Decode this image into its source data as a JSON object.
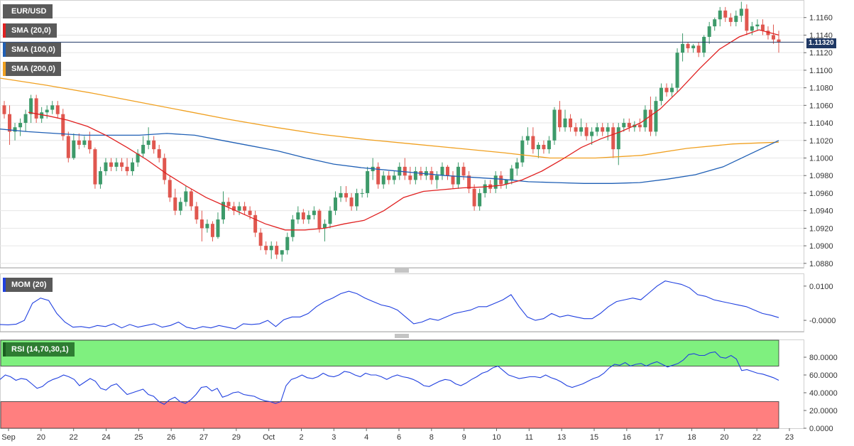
{
  "indicator_tags": {
    "symbol": "EUR/USD",
    "sma20": "SMA (20,0)",
    "sma100": "SMA (100,0)",
    "sma200": "SMA (200,0)",
    "mom": "MOM (20)",
    "rsi": "RSI (14,70,30,1)"
  },
  "current_price_label": "1.11320",
  "colors": {
    "up_candle": "#3d9a6a",
    "down_candle": "#e0574f",
    "sma20": "#e02020",
    "sma100": "#1f5fb5",
    "sma200": "#f0a020",
    "momentum": "#2040e0",
    "rsi_line": "#2040e0",
    "overbought_zone": "#7ff07f",
    "oversold_zone": "#ff7f7f",
    "price_line": "#1f3864"
  },
  "chart_data": [
    {
      "type": "candlestick",
      "title": "EUR/USD",
      "y_ticks": [
        "1.0880",
        "1.0900",
        "1.0920",
        "1.0940",
        "1.0960",
        "1.0980",
        "1.1000",
        "1.1020",
        "1.1040",
        "1.1060",
        "1.1080",
        "1.1100",
        "1.1120",
        "1.1140",
        "1.1160"
      ],
      "ylim": [
        1.0875,
        1.118
      ],
      "current_price": 1.1132,
      "x_tick_labels": [
        "Sep",
        "20",
        "22",
        "24",
        "25",
        "26",
        "27",
        "29",
        "Oct",
        "2",
        "3",
        "4",
        "6",
        "8",
        "9",
        "10",
        "11",
        "13",
        "15",
        "16",
        "17",
        "18",
        "20",
        "22",
        "23"
      ],
      "candles": [
        [
          1.106,
          1.1065,
          1.1045,
          1.105
        ],
        [
          1.105,
          1.106,
          1.1015,
          1.103
        ],
        [
          1.103,
          1.104,
          1.102,
          1.1035
        ],
        [
          1.1035,
          1.1045,
          1.1025,
          1.104
        ],
        [
          1.104,
          1.1055,
          1.103,
          1.105
        ],
        [
          1.105,
          1.1072,
          1.104,
          1.1068
        ],
        [
          1.1068,
          1.1072,
          1.104,
          1.1045
        ],
        [
          1.1045,
          1.1058,
          1.104,
          1.1052
        ],
        [
          1.1052,
          1.106,
          1.1045,
          1.1055
        ],
        [
          1.1055,
          1.1065,
          1.105,
          1.106
        ],
        [
          1.106,
          1.1065,
          1.1045,
          1.105
        ],
        [
          1.105,
          1.1056,
          1.102,
          1.1025
        ],
        [
          1.1025,
          1.103,
          1.0995,
          1.1
        ],
        [
          1.1,
          1.1028,
          1.0998,
          1.102
        ],
        [
          1.102,
          1.1028,
          1.101,
          1.1015
        ],
        [
          1.1015,
          1.1025,
          1.1012,
          1.102
        ],
        [
          1.102,
          1.103,
          1.1005,
          1.101
        ],
        [
          1.101,
          1.1012,
          1.0965,
          1.097
        ],
        [
          1.097,
          1.099,
          1.0965,
          1.0985
        ],
        [
          1.0985,
          1.1,
          1.098,
          1.0995
        ],
        [
          1.0995,
          1.1,
          1.0985,
          1.099
        ],
        [
          1.099,
          1.1,
          1.0985,
          1.0995
        ],
        [
          1.0995,
          1.1,
          1.0985,
          1.099
        ],
        [
          1.099,
          1.1,
          1.098,
          1.0985
        ],
        [
          1.0985,
          1.1,
          1.098,
          1.0995
        ],
        [
          1.0995,
          1.101,
          1.099,
          1.1005
        ],
        [
          1.1005,
          1.1025,
          1.1,
          1.1015
        ],
        [
          1.1015,
          1.1035,
          1.101,
          1.102
        ],
        [
          1.102,
          1.1025,
          1.1005,
          1.101
        ],
        [
          1.101,
          1.1015,
          1.0995,
          1.1
        ],
        [
          1.1,
          1.1005,
          1.097,
          1.0975
        ],
        [
          1.0975,
          1.098,
          1.095,
          1.0955
        ],
        [
          1.0955,
          1.0965,
          1.0935,
          1.094
        ],
        [
          1.094,
          1.0955,
          1.0935,
          1.095
        ],
        [
          1.095,
          1.0968,
          1.0945,
          1.0962
        ],
        [
          1.0962,
          1.0965,
          1.094,
          1.0945
        ],
        [
          1.0945,
          1.095,
          1.0925,
          1.093
        ],
        [
          1.093,
          1.094,
          1.0905,
          1.092
        ],
        [
          1.092,
          1.093,
          1.0915,
          1.0925
        ],
        [
          1.0925,
          1.0928,
          1.0905,
          1.091
        ],
        [
          1.091,
          1.0938,
          1.0908,
          1.093
        ],
        [
          1.093,
          1.0962,
          1.0925,
          1.095
        ],
        [
          1.095,
          1.0955,
          1.094,
          1.0945
        ],
        [
          1.0945,
          1.095,
          1.0935,
          1.094
        ],
        [
          1.094,
          1.095,
          1.0935,
          1.0945
        ],
        [
          1.0945,
          1.095,
          1.0935,
          1.094
        ],
        [
          1.094,
          1.0945,
          1.093,
          1.0935
        ],
        [
          1.0935,
          1.094,
          1.091,
          1.0915
        ],
        [
          1.0915,
          1.092,
          1.0895,
          1.09
        ],
        [
          1.09,
          1.0905,
          1.089,
          1.0895
        ],
        [
          1.0895,
          1.0905,
          1.0885,
          1.09
        ],
        [
          1.09,
          1.0905,
          1.0885,
          1.089
        ],
        [
          1.089,
          1.0895,
          1.0882,
          1.0895
        ],
        [
          1.0895,
          1.0915,
          1.089,
          1.091
        ],
        [
          1.091,
          1.0935,
          1.0905,
          1.093
        ],
        [
          1.093,
          1.0945,
          1.0925,
          1.0938
        ],
        [
          1.0938,
          1.0942,
          1.0925,
          1.093
        ],
        [
          1.093,
          1.094,
          1.0925,
          1.0935
        ],
        [
          1.0935,
          1.0945,
          1.093,
          1.094
        ],
        [
          1.094,
          1.0942,
          1.0915,
          1.092
        ],
        [
          1.092,
          1.093,
          1.0905,
          1.0925
        ],
        [
          1.0925,
          1.0945,
          1.092,
          1.094
        ],
        [
          1.094,
          1.0962,
          1.0935,
          1.0955
        ],
        [
          1.0955,
          1.0968,
          1.095,
          1.096
        ],
        [
          1.096,
          1.0968,
          1.095,
          1.0955
        ],
        [
          1.0955,
          1.096,
          1.094,
          1.0945
        ],
        [
          1.0945,
          1.0965,
          1.094,
          1.096
        ],
        [
          1.096,
          1.0965,
          1.0955,
          1.096
        ],
        [
          1.096,
          1.099,
          1.0955,
          1.0985
        ],
        [
          1.0985,
          1.1,
          1.0975,
          1.099
        ],
        [
          1.099,
          1.0995,
          1.0965,
          1.097
        ],
        [
          1.097,
          1.0985,
          1.0965,
          1.098
        ],
        [
          1.098,
          1.0985,
          1.097,
          1.0975
        ],
        [
          1.0975,
          1.0985,
          1.097,
          1.098
        ],
        [
          1.098,
          1.0995,
          1.0975,
          1.099
        ],
        [
          1.099,
          1.1,
          1.0975,
          1.098
        ],
        [
          1.098,
          1.099,
          1.097,
          1.0975
        ],
        [
          1.0975,
          1.099,
          1.097,
          1.0985
        ],
        [
          1.0985,
          1.099,
          1.0975,
          1.098
        ],
        [
          1.098,
          1.099,
          1.0975,
          1.0985
        ],
        [
          1.0985,
          1.099,
          1.097,
          1.0975
        ],
        [
          1.0975,
          1.0985,
          1.0965,
          1.098
        ],
        [
          1.098,
          1.0995,
          1.0975,
          1.099
        ],
        [
          1.099,
          1.0992,
          1.0975,
          1.098
        ],
        [
          1.098,
          1.0985,
          1.0965,
          1.097
        ],
        [
          1.097,
          1.0995,
          1.0965,
          1.099
        ],
        [
          1.099,
          1.0995,
          1.0975,
          1.098
        ],
        [
          1.098,
          1.0985,
          1.096,
          1.0965
        ],
        [
          1.0965,
          1.097,
          1.094,
          1.0945
        ],
        [
          1.0945,
          1.0965,
          1.094,
          1.096
        ],
        [
          1.096,
          1.0975,
          1.0955,
          1.097
        ],
        [
          1.097,
          1.0975,
          1.096,
          1.0965
        ],
        [
          1.0965,
          1.0985,
          1.096,
          1.098
        ],
        [
          1.098,
          1.0985,
          1.0965,
          1.097
        ],
        [
          1.097,
          1.0975,
          1.0965,
          1.0975
        ],
        [
          1.0975,
          1.0992,
          1.097,
          1.0988
        ],
        [
          1.0988,
          1.1,
          1.098,
          1.0995
        ],
        [
          1.0995,
          1.1025,
          1.099,
          1.102
        ],
        [
          1.102,
          1.1035,
          1.1015,
          1.1025
        ],
        [
          1.1025,
          1.1035,
          1.1005,
          1.101
        ],
        [
          1.101,
          1.1018,
          1.1,
          1.1015
        ],
        [
          1.1015,
          1.102,
          1.1005,
          1.101
        ],
        [
          1.101,
          1.1025,
          1.1005,
          1.102
        ],
        [
          1.102,
          1.1058,
          1.1015,
          1.1055
        ],
        [
          1.1055,
          1.1065,
          1.103,
          1.1035
        ],
        [
          1.1035,
          1.1055,
          1.103,
          1.1045
        ],
        [
          1.1045,
          1.105,
          1.103,
          1.1035
        ],
        [
          1.1035,
          1.104,
          1.1025,
          1.103
        ],
        [
          1.103,
          1.1045,
          1.1025,
          1.1035
        ],
        [
          1.1035,
          1.104,
          1.102,
          1.1025
        ],
        [
          1.1025,
          1.1035,
          1.1015,
          1.103
        ],
        [
          1.103,
          1.104,
          1.1025,
          1.1035
        ],
        [
          1.1035,
          1.104,
          1.1025,
          1.103
        ],
        [
          1.103,
          1.104,
          1.102,
          1.1035
        ],
        [
          1.1035,
          1.104,
          1.1,
          1.101
        ],
        [
          1.101,
          1.104,
          1.0992,
          1.1035
        ],
        [
          1.1035,
          1.1045,
          1.103,
          1.104
        ],
        [
          1.104,
          1.1045,
          1.103,
          1.1035
        ],
        [
          1.1035,
          1.1042,
          1.103,
          1.1038
        ],
        [
          1.1038,
          1.1045,
          1.103,
          1.1035
        ],
        [
          1.1035,
          1.106,
          1.103,
          1.1055
        ],
        [
          1.1055,
          1.107,
          1.1025,
          1.103
        ],
        [
          1.103,
          1.107,
          1.1025,
          1.1065
        ],
        [
          1.1065,
          1.1085,
          1.106,
          1.108
        ],
        [
          1.108,
          1.1085,
          1.107,
          1.1075
        ],
        [
          1.1075,
          1.1085,
          1.107,
          1.108
        ],
        [
          1.108,
          1.1125,
          1.1075,
          1.112
        ],
        [
          1.112,
          1.1142,
          1.111,
          1.113
        ],
        [
          1.113,
          1.1132,
          1.112,
          1.1125
        ],
        [
          1.1125,
          1.113,
          1.112,
          1.1128
        ],
        [
          1.1128,
          1.1132,
          1.1115,
          1.112
        ],
        [
          1.112,
          1.114,
          1.1115,
          1.1138
        ],
        [
          1.1138,
          1.1155,
          1.113,
          1.115
        ],
        [
          1.115,
          1.116,
          1.1145,
          1.1158
        ],
        [
          1.1158,
          1.1172,
          1.115,
          1.1168
        ],
        [
          1.1168,
          1.1172,
          1.1155,
          1.116
        ],
        [
          1.116,
          1.1165,
          1.115,
          1.1155
        ],
        [
          1.1155,
          1.1168,
          1.115,
          1.1162
        ],
        [
          1.1162,
          1.1178,
          1.1155,
          1.117
        ],
        [
          1.117,
          1.1175,
          1.114,
          1.1145
        ],
        [
          1.1145,
          1.1155,
          1.114,
          1.115
        ],
        [
          1.115,
          1.1158,
          1.1145,
          1.1152
        ],
        [
          1.1152,
          1.1158,
          1.114,
          1.1145
        ],
        [
          1.1145,
          1.115,
          1.1135,
          1.114
        ],
        [
          1.114,
          1.1152,
          1.113,
          1.1135
        ],
        [
          1.1135,
          1.1145,
          1.112,
          1.1132
        ]
      ],
      "sma20": [
        1.1052,
        1.1048,
        1.1043,
        1.1036,
        1.1025,
        1.1012,
        1.0998,
        1.0982,
        1.0968,
        1.0955,
        1.0945,
        1.0935,
        1.0925,
        1.0918,
        1.0918,
        1.092,
        1.0925,
        1.0929,
        1.094,
        1.0955,
        1.0962,
        1.0964,
        1.0966,
        1.0967,
        1.0969,
        1.0975,
        1.0985,
        1.0998,
        1.1012,
        1.1022,
        1.103,
        1.104,
        1.1056,
        1.1078,
        1.1102,
        1.1124,
        1.1138,
        1.1146,
        1.114
      ],
      "sma100": [
        1.1033,
        1.103,
        1.1028,
        1.1026,
        1.1026,
        1.1026,
        1.1028,
        1.1026,
        1.102,
        1.1014,
        1.1008,
        1.1,
        1.0993,
        1.0989,
        1.0986,
        1.0983,
        1.098,
        1.0978,
        1.0976,
        1.0973,
        1.0972,
        1.0971,
        1.0971,
        1.0972,
        1.0976,
        1.0981,
        1.099,
        1.1005,
        1.102
      ],
      "sma200": [
        1.1091,
        1.1083,
        1.1074,
        1.1064,
        1.1054,
        1.1044,
        1.1035,
        1.1027,
        1.1021,
        1.1016,
        1.1011,
        1.1006,
        1.1,
        1.1,
        1.1003,
        1.1011,
        1.1016,
        1.1018
      ]
    },
    {
      "type": "line",
      "title": "MOM (20)",
      "y_ticks": [
        "0.0100",
        "-0.0000"
      ],
      "ylim": [
        -0.0033,
        0.0137
      ],
      "values": [
        -0.0012,
        -0.0013,
        -0.0011,
        0.0,
        0.005,
        0.0065,
        0.0058,
        0.002,
        -0.0005,
        -0.002,
        -0.0018,
        -0.0022,
        -0.0015,
        -0.0018,
        -0.001,
        -0.0022,
        -0.0012,
        -0.002,
        -0.0015,
        -0.001,
        -0.002,
        -0.0015,
        -0.0005,
        -0.002,
        -0.0025,
        -0.0018,
        -0.0022,
        -0.0015,
        -0.002,
        -0.0025,
        -0.001,
        -0.0012,
        -0.001,
        0.0,
        -0.0018,
        0.0002,
        0.001,
        0.001,
        0.002,
        0.004,
        0.0055,
        0.0065,
        0.0078,
        0.0085,
        0.0078,
        0.0065,
        0.0055,
        0.0045,
        0.004,
        0.003,
        0.001,
        -0.001,
        -0.0005,
        0.0005,
        0.0,
        0.001,
        0.002,
        0.0025,
        0.003,
        0.004,
        0.004,
        0.005,
        0.006,
        0.0075,
        0.004,
        0.001,
        0.0,
        0.0005,
        0.002,
        0.001,
        0.0015,
        0.001,
        0.0005,
        0.0005,
        0.002,
        0.004,
        0.0055,
        0.006,
        0.0065,
        0.006,
        0.008,
        0.01,
        0.0115,
        0.011,
        0.0105,
        0.0095,
        0.0075,
        0.007,
        0.006,
        0.0055,
        0.005,
        0.0045,
        0.004,
        0.003,
        0.002,
        0.0015,
        0.0008
      ]
    },
    {
      "type": "line",
      "title": "RSI (14,70,30,1)",
      "y_ticks": [
        "80.0000",
        "60.0000",
        "40.0000",
        "20.0000",
        "0.0000"
      ],
      "ylim": [
        0,
        100
      ],
      "overbought": 70,
      "oversold": 30,
      "values": [
        55,
        60,
        58,
        54,
        56,
        55,
        50,
        45,
        47,
        52,
        55,
        57,
        60,
        58,
        55,
        48,
        52,
        56,
        53,
        45,
        43,
        48,
        50,
        44,
        38,
        40,
        42,
        44,
        38,
        36,
        30,
        27,
        32,
        35,
        30,
        28,
        32,
        38,
        46,
        47,
        42,
        45,
        35,
        37,
        40,
        41,
        38,
        37,
        36,
        33,
        31,
        30,
        28,
        30,
        48,
        55,
        57,
        60,
        57,
        56,
        58,
        62,
        59,
        58,
        60,
        64,
        63,
        60,
        58,
        62,
        60,
        60,
        58,
        55,
        58,
        60,
        58,
        57,
        55,
        52,
        48,
        47,
        50,
        53,
        55,
        54,
        50,
        48,
        51,
        55,
        58,
        62,
        64,
        68,
        70,
        65,
        60,
        58,
        56,
        57,
        58,
        58,
        57,
        60,
        57,
        55,
        52,
        48,
        46,
        48,
        50,
        53,
        56,
        58,
        62,
        68,
        72,
        71,
        74,
        70,
        72,
        73,
        70,
        73,
        75,
        72,
        69,
        71,
        73,
        77,
        83,
        84,
        82,
        82,
        85,
        86,
        80,
        79,
        82,
        78,
        65,
        66,
        64,
        62,
        61,
        59,
        57,
        54
      ]
    }
  ]
}
